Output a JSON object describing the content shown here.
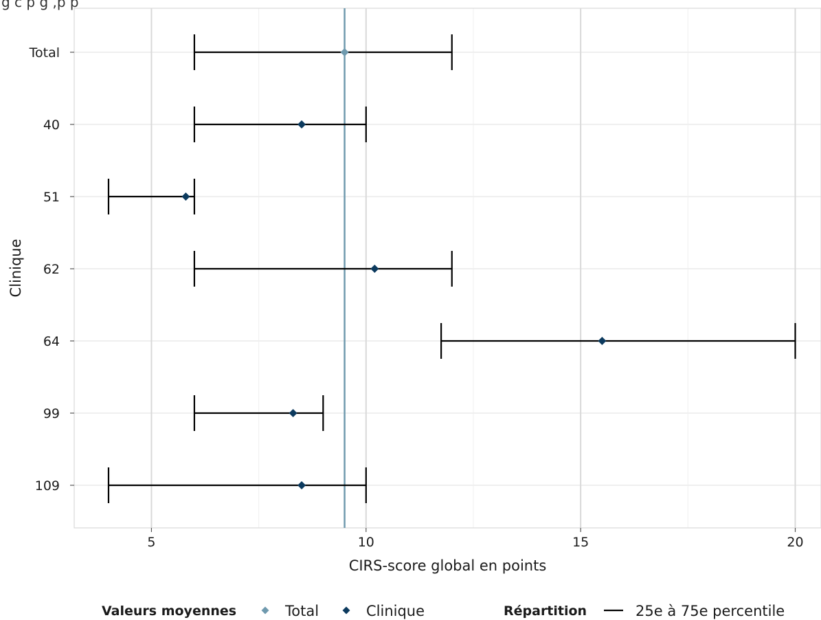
{
  "page": {
    "title_fragment": "g  c  p                g                     ,p       p"
  },
  "colors": {
    "total_marker": "#6f9aae",
    "clinique_marker": "#0c3a5e",
    "total_line": "#6f9aae",
    "errorbar": "#000000",
    "grid_major": "#d9d9d9",
    "grid_minor": "#efefef"
  },
  "chart_data": {
    "type": "errorbar",
    "xlabel": "CIRS-score global en points",
    "ylabel": "Clinique",
    "xlim": [
      3.2,
      20.6
    ],
    "x_ticks": [
      5,
      10,
      15,
      20
    ],
    "x_tick_labels": [
      "5",
      "10",
      "15",
      "20"
    ],
    "x_minor_ticks": [
      7.5,
      12.5,
      17.5
    ],
    "grid": true,
    "categories": [
      "Total",
      "40",
      "51",
      "62",
      "64",
      "99",
      "109"
    ],
    "series": [
      {
        "name": "Total",
        "kind": "mean_point",
        "points": [
          {
            "category": "Total",
            "mean": 9.5
          }
        ]
      },
      {
        "name": "Clinique",
        "kind": "mean_point",
        "points": [
          {
            "category": "40",
            "mean": 8.5
          },
          {
            "category": "51",
            "mean": 5.8
          },
          {
            "category": "62",
            "mean": 10.2
          },
          {
            "category": "64",
            "mean": 15.5
          },
          {
            "category": "99",
            "mean": 8.3
          },
          {
            "category": "109",
            "mean": 8.5
          }
        ]
      },
      {
        "name": "25e à 75e percentile",
        "kind": "interval",
        "intervals": [
          {
            "category": "Total",
            "low": 6,
            "high": 12
          },
          {
            "category": "40",
            "low": 6,
            "high": 10
          },
          {
            "category": "51",
            "low": 4,
            "high": 6
          },
          {
            "category": "62",
            "low": 6,
            "high": 12
          },
          {
            "category": "64",
            "low": 11.75,
            "high": 20
          },
          {
            "category": "99",
            "low": 6,
            "high": 9
          },
          {
            "category": "109",
            "low": 4,
            "high": 10
          }
        ]
      }
    ],
    "reference_line": {
      "x": 9.5
    },
    "legend": {
      "position": "bottom",
      "groups": [
        {
          "title": "Valeurs moyennes",
          "items": [
            "Total",
            "Clinique"
          ]
        },
        {
          "title": "Répartition",
          "items": [
            "25e à 75e percentile"
          ]
        }
      ]
    }
  }
}
